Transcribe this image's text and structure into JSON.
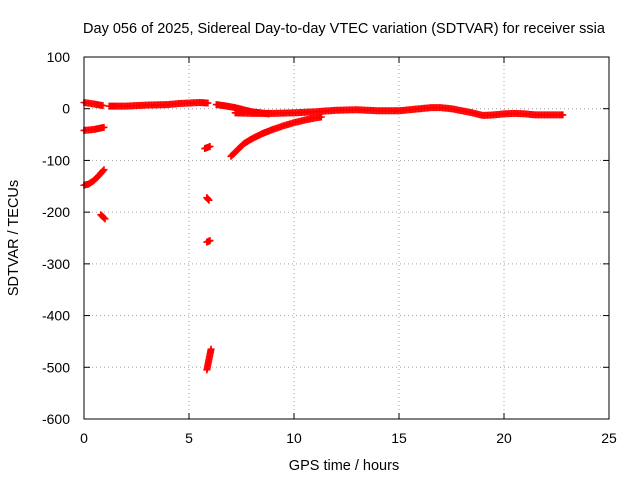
{
  "chart_data": {
    "type": "scatter",
    "title": "Day 056 of 2025, Sidereal Day-to-day VTEC variation (SDTVAR) for receiver ssia",
    "xlabel": "GPS time / hours",
    "ylabel": "SDTVAR / TECUs",
    "xlim": [
      0,
      25
    ],
    "ylim": [
      -600,
      100
    ],
    "xticks": [
      0,
      5,
      10,
      15,
      20,
      25
    ],
    "yticks": [
      -600,
      -500,
      -400,
      -300,
      -200,
      -100,
      0,
      100
    ],
    "grid": true,
    "marker_color": "#ff0000",
    "series": [
      {
        "segments": [
          [
            [
              0.0,
              12
            ],
            [
              0.5,
              9
            ],
            [
              0.9,
              6
            ]
          ],
          [
            [
              1.2,
              5
            ],
            [
              2,
              5
            ],
            [
              3,
              7
            ],
            [
              4,
              8
            ],
            [
              4.5,
              10
            ],
            [
              5,
              11
            ],
            [
              5.5,
              12
            ],
            [
              5.9,
              11
            ]
          ],
          [
            [
              6.3,
              8
            ],
            [
              6.8,
              5
            ],
            [
              7.2,
              2
            ],
            [
              7.6,
              -2
            ],
            [
              8,
              -6
            ],
            [
              8.4,
              -8
            ],
            [
              8.8,
              -10
            ]
          ],
          [
            [
              7.2,
              -8
            ],
            [
              8,
              -9
            ],
            [
              9,
              -9
            ],
            [
              10,
              -8
            ],
            [
              11,
              -6
            ],
            [
              12,
              -3
            ],
            [
              13,
              -2
            ],
            [
              14,
              -4
            ],
            [
              15,
              -4
            ],
            [
              16,
              0
            ],
            [
              16.5,
              2
            ],
            [
              17,
              2
            ],
            [
              17.5,
              0
            ],
            [
              18,
              -4
            ],
            [
              18.5,
              -8
            ],
            [
              19,
              -13
            ],
            [
              19.5,
              -12
            ],
            [
              20,
              -10
            ],
            [
              20.5,
              -9
            ],
            [
              21,
              -10
            ],
            [
              21.5,
              -12
            ],
            [
              22,
              -12
            ],
            [
              22.5,
              -12
            ],
            [
              22.8,
              -12
            ]
          ],
          [
            [
              0.0,
              -42
            ],
            [
              0.5,
              -40
            ],
            [
              0.95,
              -36
            ]
          ],
          [
            [
              0.0,
              -148
            ],
            [
              0.2,
              -146
            ],
            [
              0.4,
              -141
            ],
            [
              0.6,
              -134
            ],
            [
              0.8,
              -125
            ],
            [
              0.95,
              -118
            ]
          ],
          [
            [
              0.8,
              -205
            ],
            [
              1.0,
              -213
            ]
          ],
          [
            [
              5.75,
              -77
            ],
            [
              6.0,
              -73
            ]
          ],
          [
            [
              5.85,
              -172
            ],
            [
              5.95,
              -177
            ]
          ],
          [
            [
              5.85,
              -258
            ],
            [
              6.0,
              -255
            ]
          ],
          [
            [
              5.85,
              -505
            ],
            [
              5.95,
              -485
            ],
            [
              6.05,
              -465
            ]
          ],
          [
            [
              7.0,
              -92
            ],
            [
              7.3,
              -80
            ],
            [
              7.6,
              -68
            ],
            [
              8.0,
              -58
            ],
            [
              8.5,
              -48
            ],
            [
              9.0,
              -40
            ],
            [
              9.5,
              -33
            ],
            [
              10.0,
              -27
            ],
            [
              10.5,
              -22
            ],
            [
              11.0,
              -18
            ],
            [
              11.3,
              -16
            ]
          ]
        ]
      }
    ]
  }
}
